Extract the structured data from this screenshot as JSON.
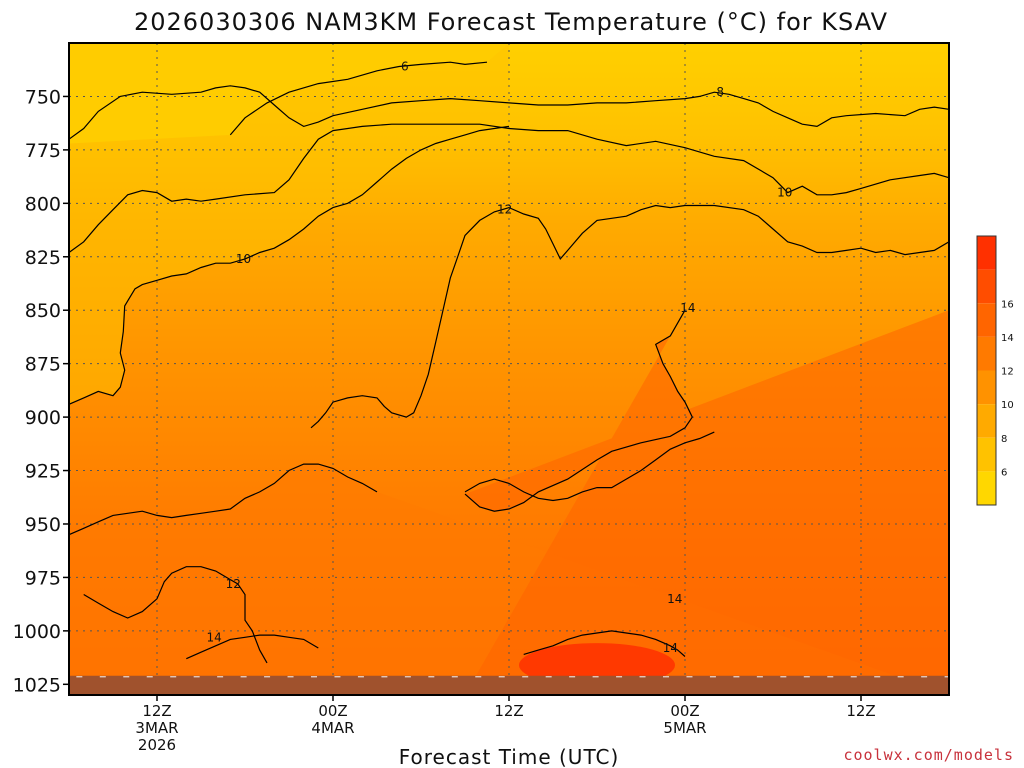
{
  "chart_data": {
    "type": "heatmap",
    "title": "2026030306 NAM3KM Forecast Temperature (°C) for KSAV",
    "xlabel": "Forecast Time (UTC)",
    "ylabel": "",
    "y_scale": "pressure",
    "y_range": [
      725,
      1030
    ],
    "x_range_hours": [
      6,
      66
    ],
    "yticks": [
      750,
      775,
      800,
      825,
      850,
      875,
      900,
      925,
      950,
      975,
      1000,
      1025
    ],
    "xticks": [
      {
        "hour": 12,
        "lines": [
          "12Z",
          "3MAR",
          "2026"
        ]
      },
      {
        "hour": 24,
        "lines": [
          "00Z",
          "4MAR"
        ]
      },
      {
        "hour": 36,
        "lines": [
          "12Z"
        ]
      },
      {
        "hour": 48,
        "lines": [
          "00Z",
          "5MAR"
        ]
      },
      {
        "hour": 60,
        "lines": [
          "12Z"
        ]
      }
    ],
    "grid": true,
    "ground_level_hpa": 1021,
    "legend": {
      "placement": "right",
      "labels": [
        6,
        8,
        10,
        12,
        14,
        16
      ],
      "colors": [
        "#ffd700",
        "#ffc200",
        "#ffaa00",
        "#ff9200",
        "#ff7a00",
        "#ff6500",
        "#ff4d00",
        "#ff3000"
      ]
    },
    "isotherms": [
      {
        "value": 6,
        "label": "6",
        "label_at": [
          28.9,
          736
        ],
        "points": [
          [
            17,
            768
          ],
          [
            18,
            760
          ],
          [
            19.5,
            753
          ],
          [
            21,
            748
          ],
          [
            23,
            744
          ],
          [
            25,
            742
          ],
          [
            27,
            738
          ],
          [
            28.5,
            736
          ],
          [
            30,
            735
          ],
          [
            32,
            734
          ],
          [
            33,
            735
          ],
          [
            34.5,
            734
          ]
        ]
      },
      {
        "value": 8,
        "label": "8",
        "label_at": [
          50.4,
          748
        ],
        "points": [
          [
            6,
            770
          ],
          [
            7,
            765
          ],
          [
            8,
            757
          ],
          [
            9.5,
            750
          ],
          [
            11,
            748
          ],
          [
            13,
            749
          ],
          [
            15,
            748
          ],
          [
            16,
            746
          ],
          [
            17,
            745
          ],
          [
            18,
            746
          ],
          [
            19,
            748
          ],
          [
            20,
            754
          ],
          [
            21,
            760
          ],
          [
            22,
            764
          ],
          [
            23,
            762
          ],
          [
            24,
            759
          ],
          [
            26,
            756
          ],
          [
            28,
            753
          ],
          [
            30,
            752
          ],
          [
            32,
            751
          ],
          [
            34,
            752
          ],
          [
            36,
            753
          ],
          [
            38,
            754
          ],
          [
            40,
            754
          ],
          [
            42,
            753
          ],
          [
            44,
            753
          ],
          [
            46,
            752
          ],
          [
            48,
            751
          ],
          [
            49,
            750
          ],
          [
            50,
            748
          ],
          [
            51,
            749
          ],
          [
            52,
            751
          ],
          [
            53,
            753
          ],
          [
            54,
            757
          ],
          [
            55,
            760
          ],
          [
            56,
            763
          ],
          [
            57,
            764
          ],
          [
            58,
            760
          ],
          [
            59,
            759
          ],
          [
            61,
            758
          ],
          [
            63,
            759
          ],
          [
            64,
            756
          ],
          [
            65,
            755
          ],
          [
            66,
            756
          ]
        ]
      },
      {
        "value": 10,
        "label": "10",
        "label_at": [
          54.8,
          795
        ],
        "points": [
          [
            6,
            823
          ],
          [
            7,
            818
          ],
          [
            8,
            810
          ],
          [
            9,
            803
          ],
          [
            10,
            796
          ],
          [
            11,
            794
          ],
          [
            12,
            795
          ],
          [
            13,
            799
          ],
          [
            14,
            798
          ],
          [
            15,
            799
          ],
          [
            16,
            798
          ],
          [
            18,
            796
          ],
          [
            20,
            795
          ],
          [
            21,
            789
          ],
          [
            22,
            779
          ],
          [
            23,
            770
          ],
          [
            24,
            766
          ],
          [
            26,
            764
          ],
          [
            28,
            763
          ],
          [
            30,
            763
          ],
          [
            32,
            763
          ],
          [
            34,
            763
          ],
          [
            36,
            765
          ],
          [
            38,
            766
          ],
          [
            40,
            766
          ],
          [
            42,
            770
          ],
          [
            44,
            773
          ],
          [
            46,
            771
          ],
          [
            48,
            774
          ],
          [
            50,
            778
          ],
          [
            52,
            780
          ],
          [
            54,
            788
          ],
          [
            55,
            795
          ],
          [
            56,
            792
          ],
          [
            57,
            796
          ],
          [
            58,
            796
          ],
          [
            59,
            795
          ],
          [
            60,
            793
          ],
          [
            62,
            789
          ],
          [
            64,
            787
          ],
          [
            65,
            786
          ],
          [
            66,
            788
          ]
        ]
      },
      {
        "value": 10,
        "label": "10",
        "label_at": [
          17.9,
          826
        ],
        "points": [
          [
            6,
            894
          ],
          [
            7,
            891
          ],
          [
            8,
            888
          ],
          [
            9,
            890
          ],
          [
            9.5,
            886
          ],
          [
            9.8,
            878
          ],
          [
            9.5,
            870
          ],
          [
            9.7,
            860
          ],
          [
            9.8,
            848
          ],
          [
            10.5,
            840
          ],
          [
            11,
            838
          ],
          [
            12,
            836
          ],
          [
            13,
            834
          ],
          [
            14,
            833
          ],
          [
            15,
            830
          ],
          [
            16,
            828
          ],
          [
            17,
            828
          ],
          [
            18,
            826
          ],
          [
            19,
            823
          ],
          [
            20,
            821
          ],
          [
            21,
            817
          ],
          [
            22,
            812
          ],
          [
            23,
            806
          ],
          [
            24,
            802
          ],
          [
            25,
            800
          ],
          [
            26,
            796
          ],
          [
            27,
            790
          ],
          [
            28,
            784
          ],
          [
            29,
            779
          ],
          [
            30,
            775
          ],
          [
            31,
            772
          ],
          [
            32,
            770
          ],
          [
            33,
            768
          ],
          [
            34,
            766
          ],
          [
            36,
            764
          ]
        ]
      },
      {
        "value": 12,
        "label": "12",
        "label_at": [
          35.7,
          803
        ],
        "points": [
          [
            22.5,
            905
          ],
          [
            23,
            902
          ],
          [
            23.5,
            898
          ],
          [
            24,
            893
          ],
          [
            25,
            891
          ],
          [
            26,
            890
          ],
          [
            27,
            891
          ],
          [
            27.5,
            895
          ],
          [
            28,
            898
          ],
          [
            29,
            900
          ],
          [
            29.5,
            898
          ],
          [
            30,
            890
          ],
          [
            30.5,
            880
          ],
          [
            31,
            865
          ],
          [
            31.5,
            850
          ],
          [
            32,
            835
          ],
          [
            32.5,
            825
          ],
          [
            33,
            815
          ],
          [
            34,
            808
          ],
          [
            35,
            804
          ],
          [
            36,
            802
          ],
          [
            37,
            805
          ],
          [
            38,
            807
          ],
          [
            38.5,
            812
          ],
          [
            39,
            819
          ],
          [
            39.5,
            826
          ],
          [
            40,
            822
          ],
          [
            41,
            814
          ],
          [
            42,
            808
          ],
          [
            43,
            807
          ],
          [
            44,
            806
          ],
          [
            45,
            803
          ],
          [
            46,
            801
          ],
          [
            47,
            802
          ],
          [
            48,
            801
          ],
          [
            50,
            801
          ],
          [
            52,
            803
          ],
          [
            53,
            806
          ],
          [
            54,
            812
          ],
          [
            55,
            818
          ],
          [
            56,
            820
          ],
          [
            57,
            823
          ],
          [
            58,
            823
          ],
          [
            59,
            822
          ],
          [
            60,
            821
          ],
          [
            61,
            823
          ],
          [
            62,
            822
          ],
          [
            63,
            824
          ],
          [
            64,
            823
          ],
          [
            65,
            822
          ],
          [
            66,
            818
          ]
        ]
      },
      {
        "value": 12,
        "label": "12",
        "label_at": [
          17.2,
          978
        ],
        "points": [
          [
            6,
            955
          ],
          [
            7,
            952
          ],
          [
            8,
            949
          ],
          [
            9,
            946
          ],
          [
            10,
            945
          ],
          [
            11,
            944
          ],
          [
            12,
            946
          ],
          [
            13,
            947
          ],
          [
            14,
            946
          ],
          [
            15,
            945
          ],
          [
            16,
            944
          ],
          [
            17,
            943
          ],
          [
            18,
            938
          ],
          [
            19,
            935
          ],
          [
            20,
            931
          ],
          [
            21,
            925
          ],
          [
            22,
            922
          ],
          [
            23,
            922
          ],
          [
            24,
            924
          ],
          [
            25,
            928
          ],
          [
            26,
            931
          ],
          [
            27,
            935
          ]
        ]
      },
      {
        "value": 12,
        "label": "",
        "label_at": null,
        "points": [
          [
            7,
            983
          ],
          [
            8,
            987
          ],
          [
            9,
            991
          ],
          [
            10,
            994
          ],
          [
            11,
            991
          ],
          [
            12,
            985
          ],
          [
            12.5,
            977
          ],
          [
            13,
            973
          ],
          [
            14,
            970
          ],
          [
            15,
            970
          ],
          [
            16,
            972
          ],
          [
            17,
            976
          ],
          [
            17.5,
            978
          ],
          [
            18,
            983
          ],
          [
            18,
            995
          ],
          [
            18.5,
            1000
          ],
          [
            19,
            1009
          ],
          [
            19.5,
            1015
          ]
        ]
      },
      {
        "value": 14,
        "label": "14",
        "label_at": [
          47.3,
          985
        ],
        "points": [
          [
            33,
            935
          ],
          [
            34,
            931
          ],
          [
            35,
            929
          ],
          [
            36,
            931
          ],
          [
            37,
            935
          ],
          [
            38,
            938
          ],
          [
            39,
            939
          ],
          [
            40,
            938
          ],
          [
            41,
            935
          ],
          [
            42,
            933
          ],
          [
            43,
            933
          ],
          [
            44,
            929
          ],
          [
            45,
            925
          ],
          [
            46,
            920
          ],
          [
            47,
            915
          ],
          [
            48,
            912
          ],
          [
            49,
            910
          ],
          [
            50,
            907
          ]
        ]
      },
      {
        "value": 14,
        "label": "14",
        "label_at": [
          47,
          1008
        ],
        "points": [
          [
            37,
            1011
          ],
          [
            38,
            1009
          ],
          [
            39,
            1007
          ],
          [
            40,
            1004
          ],
          [
            41,
            1002
          ],
          [
            42,
            1001
          ],
          [
            43,
            1000
          ],
          [
            44,
            1001
          ],
          [
            45,
            1002
          ],
          [
            46,
            1004
          ],
          [
            47,
            1007
          ],
          [
            47.5,
            1009
          ],
          [
            48,
            1012
          ]
        ]
      },
      {
        "value": 14,
        "label": "14",
        "label_at": [
          15.9,
          1003
        ],
        "points": [
          [
            14,
            1013
          ],
          [
            15,
            1010
          ],
          [
            16,
            1007
          ],
          [
            17,
            1004
          ],
          [
            18,
            1003
          ],
          [
            19,
            1002
          ],
          [
            20,
            1002
          ],
          [
            21,
            1003
          ],
          [
            22,
            1004
          ],
          [
            23,
            1008
          ]
        ]
      },
      {
        "value": 14,
        "label": "14",
        "label_at": [
          48.2,
          849
        ],
        "points": [
          [
            48,
            850
          ],
          [
            47,
            862
          ],
          [
            46,
            866
          ],
          [
            46.5,
            875
          ],
          [
            47,
            881
          ],
          [
            47.5,
            888
          ],
          [
            48,
            893
          ],
          [
            48.5,
            900
          ],
          [
            48,
            905
          ],
          [
            47,
            909
          ],
          [
            45,
            912
          ],
          [
            43,
            916
          ],
          [
            42,
            920
          ],
          [
            40,
            929
          ],
          [
            38,
            935
          ],
          [
            37,
            940
          ],
          [
            36,
            943
          ],
          [
            35,
            944
          ],
          [
            34,
            942
          ],
          [
            33,
            936
          ]
        ]
      }
    ]
  },
  "footer": {
    "credit": "coolwx.com/models"
  }
}
